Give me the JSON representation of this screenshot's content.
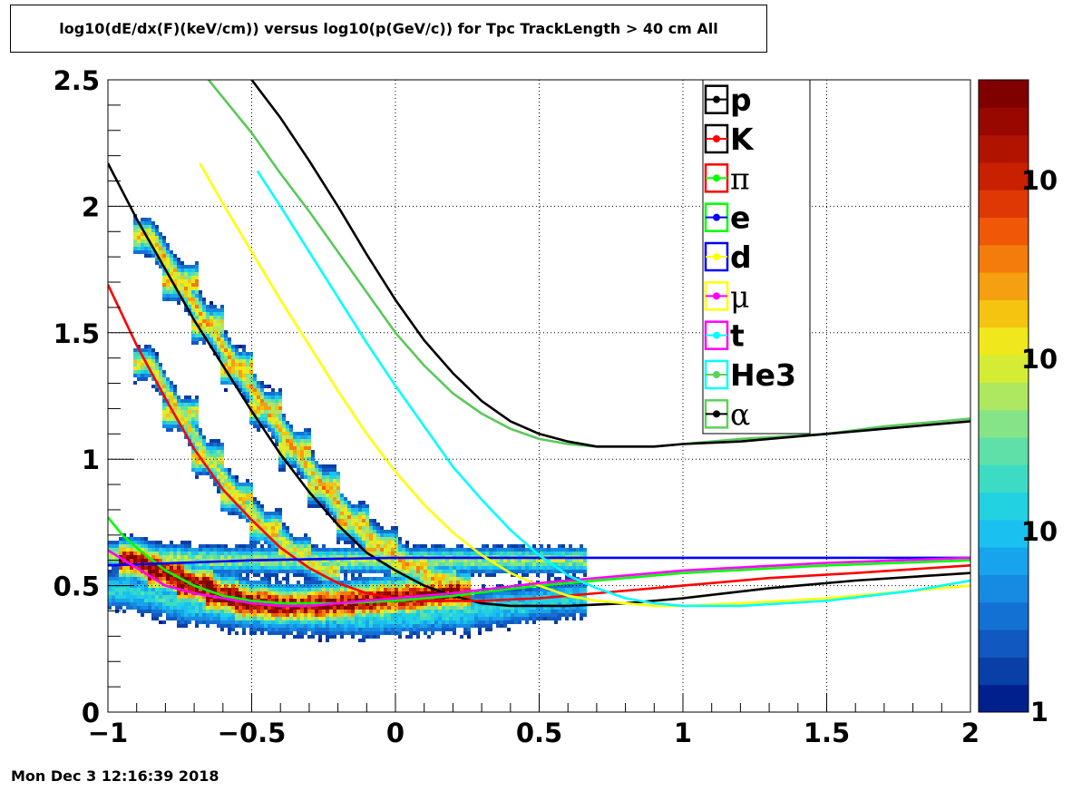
{
  "title": "log10(dE/dx(F)(keV/cm)) versus log10(p(GeV/c)) for Tpc TrackLength > 40 cm All",
  "timestamp": "Mon Dec  3 12:16:39 2018",
  "chart_data": {
    "type": "heatmap",
    "xlim": [
      -1,
      2
    ],
    "ylim": [
      0,
      2.5
    ],
    "x_ticks": [
      {
        "v": -1,
        "label": "−1"
      },
      {
        "v": -0.5,
        "label": "−0.5"
      },
      {
        "v": 0,
        "label": "0"
      },
      {
        "v": 0.5,
        "label": "0.5"
      },
      {
        "v": 1,
        "label": "1"
      },
      {
        "v": 1.5,
        "label": "1.5"
      },
      {
        "v": 2,
        "label": "2"
      }
    ],
    "y_ticks": [
      {
        "v": 0,
        "label": "0"
      },
      {
        "v": 0.5,
        "label": "0.5"
      },
      {
        "v": 1,
        "label": "1"
      },
      {
        "v": 1.5,
        "label": "1.5"
      },
      {
        "v": 2,
        "label": "2"
      },
      {
        "v": 2.5,
        "label": "2.5"
      }
    ],
    "grid": true,
    "colorbar": {
      "scale": "log",
      "labels": [
        "1",
        "10",
        "10",
        "10"
      ],
      "colors": [
        "#00208e",
        "#0a3fa8",
        "#1158c0",
        "#1471d4",
        "#178ae2",
        "#18a4ec",
        "#1ac0f0",
        "#22d2e0",
        "#3cdcc4",
        "#5ee0a8",
        "#86e488",
        "#aee860",
        "#d4ec34",
        "#f0e81c",
        "#f4c410",
        "#f4a010",
        "#f47c0c",
        "#f05808",
        "#e03804",
        "#c82000",
        "#b01400",
        "#980800",
        "#800000"
      ]
    },
    "legend": {
      "placement": "top-right",
      "entries": [
        {
          "label": "p",
          "greek": false,
          "box_color": "#000000",
          "marker_color": "#000000"
        },
        {
          "label": "K",
          "greek": false,
          "box_color": "#000000",
          "marker_color": "#ff0000"
        },
        {
          "label": "π",
          "greek": true,
          "box_color": "#ff0000",
          "marker_color": "#00ff00"
        },
        {
          "label": "e",
          "greek": false,
          "box_color": "#00ff00",
          "marker_color": "#0000ff"
        },
        {
          "label": "d",
          "greek": false,
          "box_color": "#0000ff",
          "marker_color": "#ffff00"
        },
        {
          "label": "μ",
          "greek": true,
          "box_color": "#ffff00",
          "marker_color": "#ff00ff"
        },
        {
          "label": "t",
          "greek": false,
          "box_color": "#ff00ff",
          "marker_color": "#00ffff"
        },
        {
          "label": "He3",
          "greek": false,
          "box_color": "#00ffff",
          "marker_color": "#5ad25a"
        },
        {
          "label": "α",
          "greek": true,
          "box_color": "#5ad25a",
          "marker_color": "#000000"
        }
      ]
    },
    "series": [
      {
        "color": "#000000",
        "points": [
          [
            -1,
            2.17
          ],
          [
            -0.9,
            1.95
          ],
          [
            -0.8,
            1.75
          ],
          [
            -0.7,
            1.55
          ],
          [
            -0.6,
            1.37
          ],
          [
            -0.5,
            1.19
          ],
          [
            -0.4,
            1.02
          ],
          [
            -0.3,
            0.87
          ],
          [
            -0.2,
            0.74
          ],
          [
            -0.1,
            0.63
          ],
          [
            0,
            0.56
          ],
          [
            0.1,
            0.5
          ],
          [
            0.2,
            0.46
          ],
          [
            0.3,
            0.43
          ],
          [
            0.4,
            0.42
          ],
          [
            0.5,
            0.42
          ],
          [
            0.6,
            0.42
          ],
          [
            0.8,
            0.43
          ],
          [
            1,
            0.45
          ],
          [
            1.3,
            0.49
          ],
          [
            1.6,
            0.52
          ],
          [
            2,
            0.55
          ]
        ]
      },
      {
        "color": "#ff0000",
        "points": [
          [
            -1,
            1.69
          ],
          [
            -0.9,
            1.45
          ],
          [
            -0.8,
            1.24
          ],
          [
            -0.7,
            1.04
          ],
          [
            -0.6,
            0.88
          ],
          [
            -0.5,
            0.76
          ],
          [
            -0.4,
            0.65
          ],
          [
            -0.3,
            0.57
          ],
          [
            -0.2,
            0.51
          ],
          [
            -0.1,
            0.47
          ],
          [
            0,
            0.45
          ],
          [
            0.1,
            0.44
          ],
          [
            0.2,
            0.44
          ],
          [
            0.3,
            0.44
          ],
          [
            0.5,
            0.45
          ],
          [
            0.7,
            0.47
          ],
          [
            1,
            0.5
          ],
          [
            1.3,
            0.53
          ],
          [
            1.6,
            0.55
          ],
          [
            2,
            0.58
          ]
        ]
      },
      {
        "color": "#00ff00",
        "points": [
          [
            -1,
            0.77
          ],
          [
            -0.95,
            0.7
          ],
          [
            -0.9,
            0.65
          ],
          [
            -0.8,
            0.56
          ],
          [
            -0.7,
            0.5
          ],
          [
            -0.6,
            0.46
          ],
          [
            -0.5,
            0.44
          ],
          [
            -0.4,
            0.43
          ],
          [
            -0.3,
            0.43
          ],
          [
            -0.2,
            0.43
          ],
          [
            0,
            0.44
          ],
          [
            0.2,
            0.46
          ],
          [
            0.5,
            0.5
          ],
          [
            0.8,
            0.53
          ],
          [
            1,
            0.55
          ],
          [
            1.5,
            0.58
          ],
          [
            2,
            0.6
          ]
        ]
      },
      {
        "color": "#0000ff",
        "points": [
          [
            -1,
            0.58
          ],
          [
            -0.5,
            0.6
          ],
          [
            0,
            0.61
          ],
          [
            0.5,
            0.61
          ],
          [
            1,
            0.61
          ],
          [
            1.5,
            0.61
          ],
          [
            2,
            0.61
          ]
        ]
      },
      {
        "color": "#ffff00",
        "points": [
          [
            -0.68,
            2.17
          ],
          [
            -0.6,
            2.01
          ],
          [
            -0.5,
            1.82
          ],
          [
            -0.4,
            1.63
          ],
          [
            -0.3,
            1.45
          ],
          [
            -0.2,
            1.27
          ],
          [
            -0.1,
            1.1
          ],
          [
            0,
            0.95
          ],
          [
            0.1,
            0.82
          ],
          [
            0.2,
            0.71
          ],
          [
            0.3,
            0.62
          ],
          [
            0.4,
            0.55
          ],
          [
            0.5,
            0.5
          ],
          [
            0.6,
            0.46
          ],
          [
            0.7,
            0.44
          ],
          [
            0.8,
            0.43
          ],
          [
            0.9,
            0.42
          ],
          [
            1,
            0.42
          ],
          [
            1.2,
            0.43
          ],
          [
            1.5,
            0.45
          ],
          [
            1.8,
            0.48
          ],
          [
            2,
            0.5
          ]
        ]
      },
      {
        "color": "#ff00ff",
        "points": [
          [
            -1,
            0.64
          ],
          [
            -0.9,
            0.57
          ],
          [
            -0.8,
            0.5
          ],
          [
            -0.7,
            0.47
          ],
          [
            -0.6,
            0.45
          ],
          [
            -0.5,
            0.43
          ],
          [
            -0.4,
            0.42
          ],
          [
            -0.3,
            0.42
          ],
          [
            -0.2,
            0.43
          ],
          [
            0,
            0.45
          ],
          [
            0.2,
            0.47
          ],
          [
            0.5,
            0.51
          ],
          [
            1,
            0.56
          ],
          [
            1.5,
            0.59
          ],
          [
            2,
            0.61
          ]
        ]
      },
      {
        "color": "#00ffff",
        "points": [
          [
            -0.48,
            2.14
          ],
          [
            -0.4,
            2.0
          ],
          [
            -0.3,
            1.82
          ],
          [
            -0.2,
            1.64
          ],
          [
            -0.1,
            1.46
          ],
          [
            0,
            1.29
          ],
          [
            0.1,
            1.13
          ],
          [
            0.2,
            0.97
          ],
          [
            0.3,
            0.84
          ],
          [
            0.4,
            0.72
          ],
          [
            0.5,
            0.62
          ],
          [
            0.6,
            0.54
          ],
          [
            0.7,
            0.49
          ],
          [
            0.8,
            0.45
          ],
          [
            0.9,
            0.43
          ],
          [
            1,
            0.42
          ],
          [
            1.2,
            0.42
          ],
          [
            1.5,
            0.44
          ],
          [
            1.8,
            0.48
          ],
          [
            2,
            0.52
          ]
        ]
      },
      {
        "color": "#5ac85a",
        "points": [
          [
            -0.65,
            2.5
          ],
          [
            -0.5,
            2.29
          ],
          [
            -0.4,
            2.13
          ],
          [
            -0.3,
            1.98
          ],
          [
            -0.2,
            1.82
          ],
          [
            -0.1,
            1.66
          ],
          [
            0,
            1.5
          ],
          [
            0.1,
            1.37
          ],
          [
            0.2,
            1.26
          ],
          [
            0.3,
            1.18
          ],
          [
            0.4,
            1.12
          ],
          [
            0.5,
            1.08
          ],
          [
            0.6,
            1.06
          ],
          [
            0.7,
            1.05
          ],
          [
            0.8,
            1.05
          ],
          [
            0.9,
            1.05
          ],
          [
            1,
            1.06
          ],
          [
            1.2,
            1.08
          ],
          [
            1.5,
            1.1
          ],
          [
            1.7,
            1.13
          ],
          [
            2,
            1.16
          ]
        ]
      },
      {
        "color": "#000000",
        "points": [
          [
            -0.5,
            2.5
          ],
          [
            -0.4,
            2.35
          ],
          [
            -0.3,
            2.18
          ],
          [
            -0.2,
            2.0
          ],
          [
            -0.1,
            1.81
          ],
          [
            0,
            1.63
          ],
          [
            0.1,
            1.47
          ],
          [
            0.2,
            1.34
          ],
          [
            0.3,
            1.23
          ],
          [
            0.4,
            1.15
          ],
          [
            0.5,
            1.1
          ],
          [
            0.6,
            1.07
          ],
          [
            0.7,
            1.05
          ],
          [
            0.8,
            1.05
          ],
          [
            0.9,
            1.05
          ],
          [
            1,
            1.06
          ],
          [
            1.2,
            1.07
          ],
          [
            1.5,
            1.1
          ],
          [
            1.7,
            1.12
          ],
          [
            2,
            1.15
          ]
        ]
      }
    ],
    "heat_bands": [
      {
        "centers": [
          [
            -0.85,
            1.88
          ],
          [
            -0.75,
            1.7
          ],
          [
            -0.65,
            1.53
          ],
          [
            -0.55,
            1.36
          ],
          [
            -0.45,
            1.2
          ],
          [
            -0.35,
            1.04
          ],
          [
            -0.25,
            0.89
          ],
          [
            -0.15,
            0.75
          ],
          [
            -0.05,
            0.65
          ],
          [
            0.05,
            0.58
          ],
          [
            0.15,
            0.52
          ]
        ],
        "width": 0.05,
        "level": 0.65
      },
      {
        "centers": [
          [
            -0.85,
            1.38
          ],
          [
            -0.75,
            1.18
          ],
          [
            -0.65,
            1.0
          ],
          [
            -0.55,
            0.85
          ],
          [
            -0.45,
            0.73
          ],
          [
            -0.35,
            0.63
          ],
          [
            -0.25,
            0.56
          ]
        ],
        "width": 0.045,
        "level": 0.6
      },
      {
        "centers": [
          [
            -0.9,
            0.6
          ],
          [
            -0.8,
            0.55
          ],
          [
            -0.7,
            0.5
          ],
          [
            -0.6,
            0.46
          ],
          [
            -0.5,
            0.43
          ],
          [
            -0.4,
            0.42
          ],
          [
            -0.3,
            0.42
          ],
          [
            -0.2,
            0.43
          ],
          [
            -0.1,
            0.44
          ],
          [
            0,
            0.45
          ],
          [
            0.1,
            0.46
          ],
          [
            0.2,
            0.47
          ]
        ],
        "width": 0.06,
        "level": 1.0
      },
      {
        "centers": [
          [
            -0.95,
            0.62
          ],
          [
            -0.8,
            0.61
          ],
          [
            -0.6,
            0.6
          ],
          [
            -0.4,
            0.6
          ],
          [
            -0.2,
            0.6
          ],
          [
            0,
            0.6
          ],
          [
            0.2,
            0.6
          ],
          [
            0.4,
            0.6
          ],
          [
            0.6,
            0.6
          ]
        ],
        "width": 0.04,
        "level": 0.5
      },
      {
        "centers": [
          [
            -0.95,
            0.48
          ],
          [
            -0.7,
            0.42
          ],
          [
            -0.4,
            0.38
          ],
          [
            -0.1,
            0.37
          ],
          [
            0.2,
            0.39
          ],
          [
            0.4,
            0.42
          ],
          [
            0.6,
            0.45
          ]
        ],
        "width": 0.06,
        "level": 0.35
      }
    ]
  }
}
